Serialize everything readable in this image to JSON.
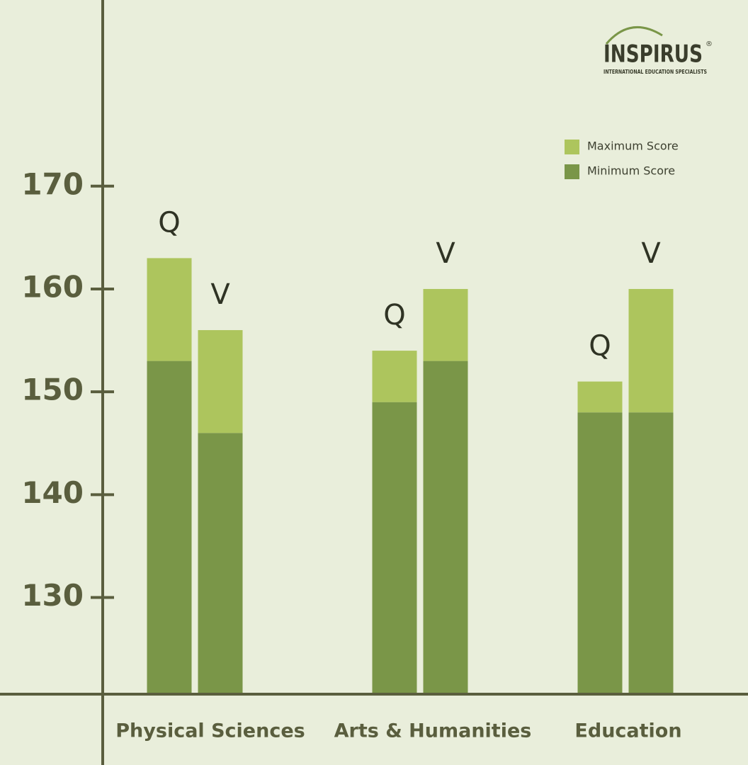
{
  "chart_data": {
    "type": "range_bar",
    "categories": [
      "Physical Sciences",
      "Arts & Humanities",
      "Education"
    ],
    "bars": [
      {
        "name": "Q",
        "min": [
          153,
          149,
          148
        ],
        "max": [
          163,
          154,
          151
        ]
      },
      {
        "name": "V",
        "min": [
          146,
          153,
          148
        ],
        "max": [
          156,
          160,
          160
        ]
      }
    ],
    "legend": [
      {
        "name": "Maximum Score",
        "color": "#adc55d"
      },
      {
        "name": "Minimum Score",
        "color": "#7a9648"
      }
    ],
    "ylim": [
      120.6,
      188.1
    ],
    "yticks": [
      130,
      140,
      150,
      160,
      170
    ]
  },
  "logo": {
    "name": "INSPIRUS",
    "mark": "®",
    "tagline": "INTERNATIONAL EDUCATION SPECIALISTS"
  }
}
